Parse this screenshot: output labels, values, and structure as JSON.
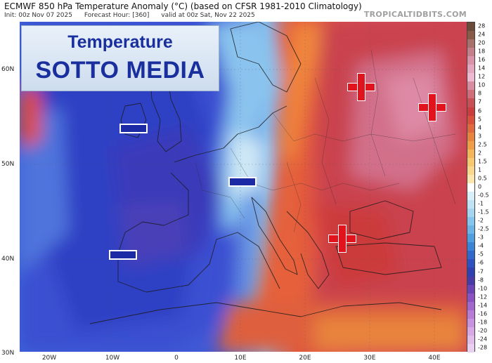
{
  "header": {
    "title": "ECMWF 850 hPa Temperature Anomaly (°C) (based on CFSR 1981-2010 Climatology)",
    "init": "Init: 00z Nov 07 2025",
    "forecast_hour": "Forecast Hour: [360]",
    "valid": "valid at 00z Sat, Nov 22 2025"
  },
  "brand": "TROPICALTIDBITS.COM",
  "overlay": {
    "line1": "Temperature",
    "line2": "SOTTO MEDIA",
    "text_color": "#1a2f9e"
  },
  "colors": {
    "minus_sign": "#1d2aa6",
    "plus_sign": "#e1131c",
    "ocean_cold": "#3a4fd0",
    "warm": "#c83a3a"
  },
  "map": {
    "lat_labels": [
      "60N",
      "50N",
      "40N",
      "30N"
    ],
    "lon_labels": [
      "20W",
      "10W",
      "0",
      "10E",
      "20E",
      "30E",
      "40E"
    ],
    "minus_markers": 3,
    "plus_markers": 3
  },
  "colorbar": {
    "labels": [
      "28",
      "24",
      "20",
      "18",
      "16",
      "14",
      "12",
      "10",
      "8",
      "7",
      "6",
      "5",
      "4",
      "3",
      "2.5",
      "2",
      "1.5",
      "1",
      "0.5",
      "0",
      "-0.5",
      "-1",
      "-1.5",
      "-2",
      "-2.5",
      "-3",
      "-4",
      "-5",
      "-6",
      "-7",
      "-8",
      "-10",
      "-12",
      "-14",
      "-16",
      "-18",
      "-20",
      "-24",
      "-28"
    ],
    "colors": [
      "#6b4a3a",
      "#8a5a48",
      "#a8706a",
      "#c47f8a",
      "#d992a8",
      "#e5a6c0",
      "#eebad2",
      "#d98da0",
      "#cf6d7a",
      "#c84f56",
      "#cc3c3c",
      "#d9503a",
      "#e06a3e",
      "#e8843e",
      "#ef9e48",
      "#f4b55a",
      "#f7c872",
      "#f9d88e",
      "#fbe6ae",
      "#ffffff",
      "#d8eef8",
      "#bfe3f5",
      "#a4d6f2",
      "#86c6ee",
      "#6cb4e8",
      "#4f9ee0",
      "#3a84d8",
      "#3168cc",
      "#2e50c0",
      "#3040b0",
      "#4a3aa8",
      "#6a44b4",
      "#8a52c0",
      "#a266cc",
      "#b87cd6",
      "#c992de",
      "#d8a8e6",
      "#e2bdec",
      "#ead0f0"
    ]
  }
}
